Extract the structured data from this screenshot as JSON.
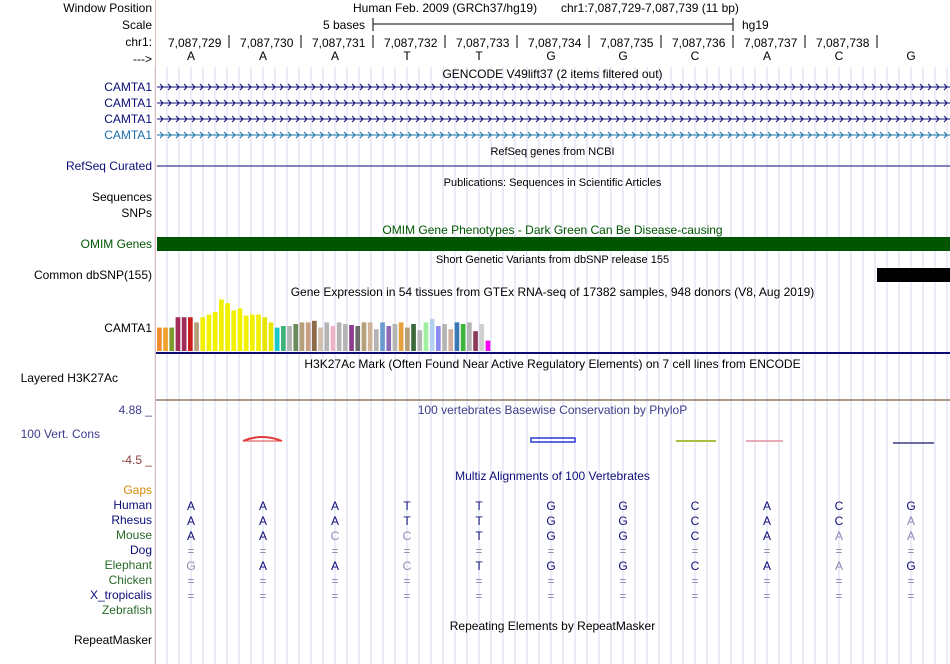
{
  "header": {
    "window_position_label": "Window Position",
    "assembly_title": "Human Feb. 2009 (GRCh37/hg19)",
    "position": "chr1:7,087,729-7,087,739 (11 bp)",
    "scale_label": "Scale",
    "scale_text": "5 bases",
    "scale_assembly": "hg19",
    "chrom_label": "chr1:",
    "strand_label": "--->"
  },
  "ruler": {
    "ticks": [
      "7,087,729",
      "7,087,730",
      "7,087,731",
      "7,087,732",
      "7,087,733",
      "7,087,734",
      "7,087,735",
      "7,087,736",
      "7,087,737",
      "7,087,738"
    ],
    "bases": [
      "A",
      "A",
      "A",
      "T",
      "T",
      "G",
      "G",
      "C",
      "A",
      "C",
      "G"
    ]
  },
  "tracks": {
    "gencode": {
      "title": "GENCODE V49lift37 (2 items filtered out)",
      "items": [
        {
          "label": "CAMTA1",
          "color": "#0c0c78"
        },
        {
          "label": "CAMTA1",
          "color": "#0c0c78"
        },
        {
          "label": "CAMTA1",
          "color": "#0c0c78"
        },
        {
          "label": "CAMTA1",
          "color": "#1a6fa8"
        }
      ]
    },
    "refseq": {
      "label": "RefSeq Curated",
      "title": "RefSeq genes from NCBI",
      "color": "#0c0c78"
    },
    "publications": {
      "label1": "Sequences",
      "label2": "SNPs",
      "title": "Publications: Sequences in Scientific Articles"
    },
    "omim": {
      "label": "OMIM Genes",
      "title": "OMIM Gene Phenotypes - Dark Green Can Be Disease-causing",
      "color": "#005500"
    },
    "dbsnp": {
      "label": "Common dbSNP(155)",
      "title": "Short Genetic Variants from dbSNP release 155"
    },
    "gtex": {
      "label": "CAMTA1",
      "title": "Gene Expression in 54 tissues from GTEx RNA-seq of 17382 samples, 948 donors (V8, Aug 2019)",
      "values": [
        0.45,
        0.45,
        0.45,
        0.65,
        0.65,
        0.65,
        0.55,
        0.65,
        0.7,
        0.75,
        0.99,
        0.92,
        0.78,
        0.82,
        0.68,
        0.7,
        0.7,
        0.65,
        0.55,
        0.45,
        0.48,
        0.48,
        0.52,
        0.55,
        0.55,
        0.58,
        0.45,
        0.55,
        0.48,
        0.55,
        0.52,
        0.5,
        0.48,
        0.55,
        0.55,
        0.42,
        0.55,
        0.48,
        0.52,
        0.55,
        0.45,
        0.52,
        0.4,
        0.55,
        0.62,
        0.48,
        0.52,
        0.42,
        0.55,
        0.52,
        0.55,
        0.38,
        0.52,
        0.2
      ],
      "colors": [
        "#f08c2c",
        "#f0a02c",
        "#7a9a2c",
        "#a02c5a",
        "#a02c5a",
        "#c81e1e",
        "#b4a07a",
        "#f0f000",
        "#f0f000",
        "#f0f000",
        "#f0f000",
        "#f0f000",
        "#f0f000",
        "#f0f000",
        "#f0f000",
        "#f0f000",
        "#f0f000",
        "#e6e600",
        "#e6e600",
        "#1ec8c8",
        "#3cb478",
        "#b4b4b4",
        "#6a8a5a",
        "#b4a07a",
        "#c8a080",
        "#8c6a4a",
        "#d0c0b0",
        "#b4b4b4",
        "#f0b4c8",
        "#b4b4b4",
        "#b4b4b4",
        "#8c3c8c",
        "#6a6a6a",
        "#b4a07a",
        "#d0b49a",
        "#b4b4b4",
        "#6a9ad0",
        "#8c6ab4",
        "#b4b4b4",
        "#e6a040",
        "#b4a07a",
        "#3c6a3c",
        "#b4b4b4",
        "#a0f0a0",
        "#b4d0f0",
        "#8c8cf0",
        "#b4b4b4",
        "#d0b0a0",
        "#3c78b4",
        "#3cb43c",
        "#b4b4b4",
        "#8c3c5a",
        "#d0d0d0",
        "#ff00ff"
      ]
    },
    "h3k27ac": {
      "label": "Layered H3K27Ac",
      "title": "H3K27Ac Mark (Often Found Near Active Regulatory Elements) on 7 cell lines from ENCODE"
    },
    "phylop": {
      "label": "100 Vert. Cons",
      "title": "100 vertebrates Basewise Conservation by PhyloP",
      "max": "4.88 _",
      "min": "-4.5 _"
    },
    "multiz": {
      "title": "Multiz Alignments of 100 Vertebrates",
      "gaps_label": "Gaps",
      "species": [
        {
          "name": "Human",
          "color": "#0c0c78",
          "seq": [
            "A",
            "A",
            "A",
            "T",
            "T",
            "G",
            "G",
            "C",
            "A",
            "C",
            "G"
          ],
          "dim": [
            0,
            0,
            0,
            0,
            0,
            0,
            0,
            0,
            0,
            0,
            0
          ]
        },
        {
          "name": "Rhesus",
          "color": "#0c0c78",
          "seq": [
            "A",
            "A",
            "A",
            "T",
            "T",
            "G",
            "G",
            "C",
            "A",
            "C",
            "A"
          ],
          "dim": [
            0,
            0,
            0,
            0,
            0,
            0,
            0,
            0,
            0,
            0,
            1
          ]
        },
        {
          "name": "Mouse",
          "color": "#2a6a2a",
          "seq": [
            "A",
            "A",
            "C",
            "C",
            "T",
            "G",
            "G",
            "C",
            "A",
            "A",
            "A"
          ],
          "dim": [
            0,
            0,
            1,
            1,
            0,
            0,
            0,
            0,
            0,
            1,
            1
          ]
        },
        {
          "name": "Dog",
          "color": "#0c0c78",
          "seq": [
            "=",
            "=",
            "=",
            "=",
            "=",
            "=",
            "=",
            "=",
            "=",
            "=",
            "="
          ],
          "dim": [
            1,
            1,
            1,
            1,
            1,
            1,
            1,
            1,
            1,
            1,
            1
          ]
        },
        {
          "name": "Elephant",
          "color": "#2a6a2a",
          "seq": [
            "G",
            "A",
            "A",
            "C",
            "T",
            "G",
            "G",
            "C",
            "A",
            "A",
            "G"
          ],
          "dim": [
            1,
            0,
            0,
            1,
            0,
            0,
            0,
            0,
            0,
            1,
            0
          ]
        },
        {
          "name": "Chicken",
          "color": "#2a6a2a",
          "seq": [
            "=",
            "=",
            "=",
            "=",
            "=",
            "=",
            "=",
            "=",
            "=",
            "=",
            "="
          ],
          "dim": [
            1,
            1,
            1,
            1,
            1,
            1,
            1,
            1,
            1,
            1,
            1
          ]
        },
        {
          "name": "X_tropicalis",
          "color": "#0c0c78",
          "seq": [
            "=",
            "=",
            "=",
            "=",
            "=",
            "=",
            "=",
            "=",
            "=",
            "=",
            "="
          ],
          "dim": [
            1,
            1,
            1,
            1,
            1,
            1,
            1,
            1,
            1,
            1,
            1
          ]
        },
        {
          "name": "Zebrafish",
          "color": "#2a6a2a",
          "seq": [],
          "dim": []
        }
      ]
    },
    "repeatmasker": {
      "label": "RepeatMasker",
      "title": "Repeating Elements by RepeatMasker"
    }
  },
  "colors": {
    "ruler_blue": "#0c0c78",
    "gaps_orange": "#d4890a",
    "phylop_pos": "#3c3c8c",
    "phylop_neg": "#8c3c3c",
    "guide": "#d8d8f0"
  }
}
